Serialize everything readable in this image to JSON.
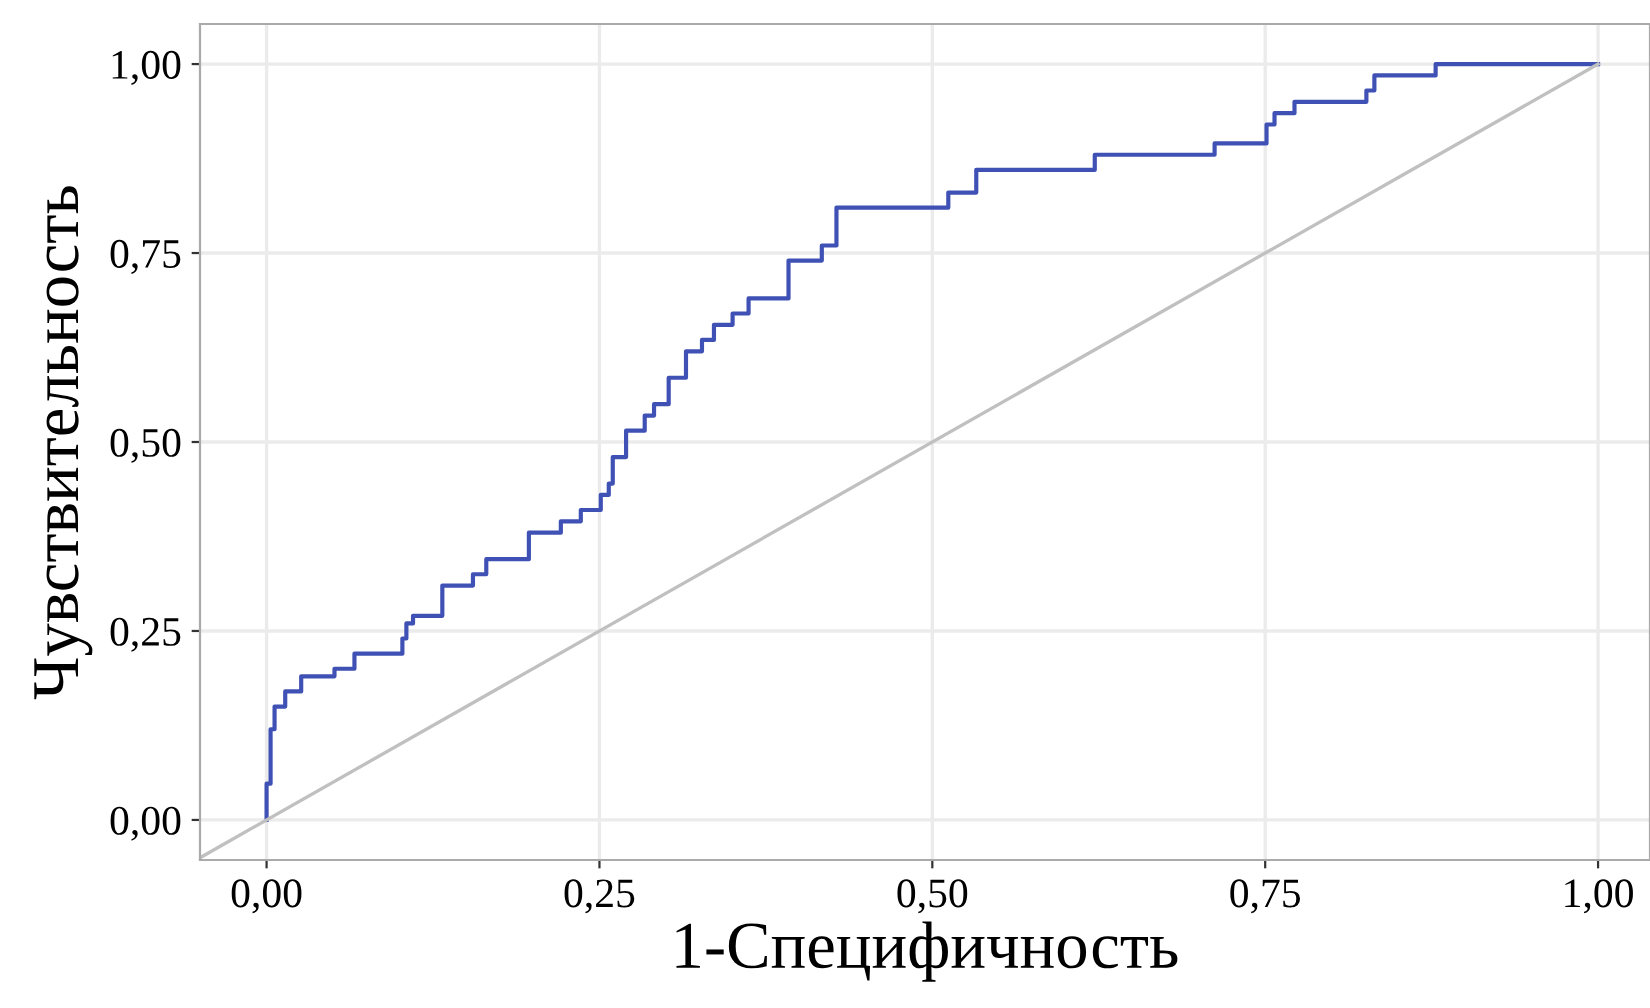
{
  "chart_data": {
    "type": "step",
    "xlabel": "1-Специфичность",
    "ylabel": "Чувствительность",
    "xlim": [
      -0.05,
      1.039
    ],
    "ylim": [
      -0.053,
      1.053
    ],
    "xticks": [
      {
        "value": 0,
        "label": "0,00"
      },
      {
        "value": 0.25,
        "label": "0,25"
      },
      {
        "value": 0.5,
        "label": "0,50"
      },
      {
        "value": 0.75,
        "label": "0,75"
      },
      {
        "value": 1,
        "label": "1,00"
      }
    ],
    "yticks": [
      {
        "value": 0,
        "label": "0,00"
      },
      {
        "value": 0.25,
        "label": "0,25"
      },
      {
        "value": 0.5,
        "label": "0,50"
      },
      {
        "value": 0.75,
        "label": "0,75"
      },
      {
        "value": 1,
        "label": "1,00"
      }
    ],
    "grid": true,
    "series": [
      {
        "color": "#3f51b5",
        "x": [
          0,
          0,
          0.003,
          0.006,
          0.014,
          0.026,
          0.051,
          0.066,
          0.102,
          0.105,
          0.11,
          0.132,
          0.155,
          0.165,
          0.197,
          0.221,
          0.236,
          0.251,
          0.257,
          0.26,
          0.27,
          0.284,
          0.291,
          0.302,
          0.315,
          0.327,
          0.336,
          0.35,
          0.362,
          0.392,
          0.417,
          0.428,
          0.512,
          0.533,
          0.622,
          0.712,
          0.751,
          0.757,
          0.772,
          0.826,
          0.832,
          0.878,
          1
        ],
        "values": [
          0,
          0.048,
          0.12,
          0.15,
          0.17,
          0.19,
          0.2,
          0.22,
          0.24,
          0.26,
          0.27,
          0.31,
          0.325,
          0.345,
          0.38,
          0.395,
          0.41,
          0.43,
          0.445,
          0.48,
          0.515,
          0.535,
          0.55,
          0.585,
          0.62,
          0.635,
          0.655,
          0.67,
          0.69,
          0.74,
          0.76,
          0.81,
          0.83,
          0.86,
          0.88,
          0.895,
          0.92,
          0.935,
          0.95,
          0.965,
          0.985,
          1,
          1
        ]
      },
      {
        "type": "line",
        "color": "#c0c0c0",
        "x": [
          -0.05,
          1
        ],
        "values": [
          -0.05,
          1
        ]
      }
    ]
  }
}
